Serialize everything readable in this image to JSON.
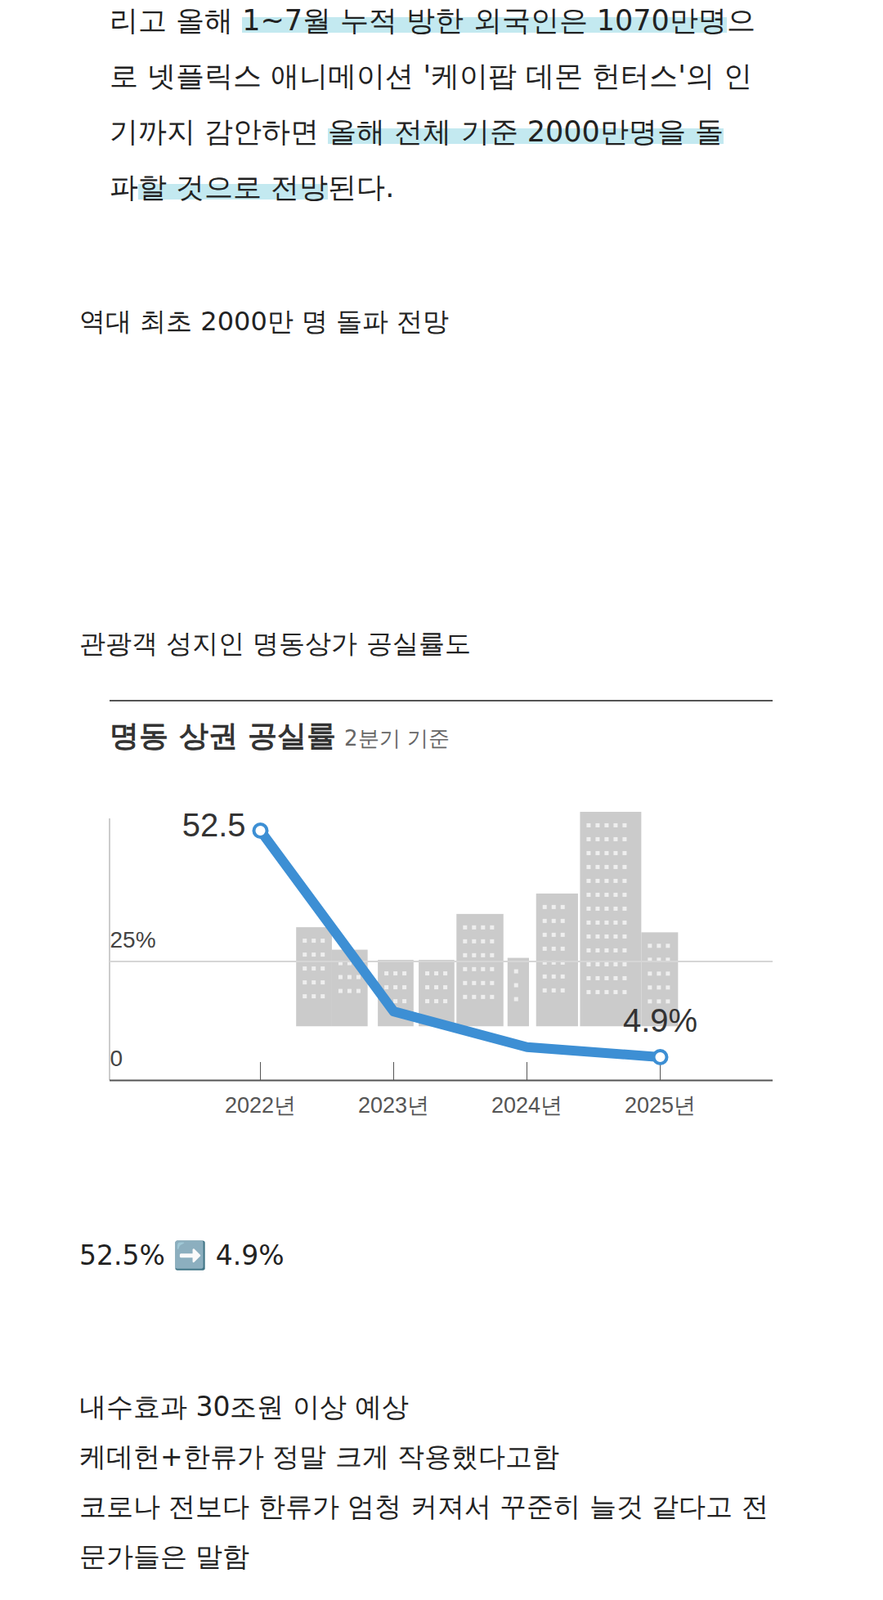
{
  "article": {
    "paragraph": [
      [
        {
          "text": "리고 올해 "
        },
        {
          "text": "1~7월 누적 방한 외국인은 1070만명",
          "highlight": true
        },
        {
          "text": "으"
        }
      ],
      [
        {
          "text": "로 넷플릭스 애니메이션 '케이팝 데몬 헌터스'의 인"
        }
      ],
      [
        {
          "text": "기까지 감안하면 "
        },
        {
          "text": "올해 전체 기준 2000만명을 돌",
          "highlight": true
        }
      ],
      [
        {
          "text": "파"
        },
        {
          "text": "할 것으로 전망",
          "highlight": true
        },
        {
          "text": "된다."
        }
      ]
    ],
    "heading1": "역대 최초 2000만 명 돌파 전망",
    "heading2": "관광객 성지인 명동상가 공실률도",
    "summary": "52.5% ➡️ 4.9%",
    "closing": [
      "내수효과 30조원 이상 예상",
      "케데헌+한류가 정말 크게 작용했다고함",
      "코로나 전보다 한류가 엄청 커져서 꾸준히 늘것 같다고 전",
      "문가들은 말함"
    ]
  },
  "chart_data": {
    "type": "line",
    "title": "명동 상권 공실률",
    "subtitle": "2분기 기준",
    "categories": [
      "2022년",
      "2023년",
      "2024년",
      "2025년"
    ],
    "values": [
      52.5,
      14.5,
      7.0,
      4.9
    ],
    "value_labels": [
      "52.5",
      null,
      null,
      "4.9%"
    ],
    "data_labels": true,
    "color": "#3d8fd4",
    "marker": "circle",
    "ylim": [
      0,
      55
    ],
    "yticks": [
      0,
      {
        "value": 25,
        "label": "25%"
      }
    ],
    "grid": true
  }
}
